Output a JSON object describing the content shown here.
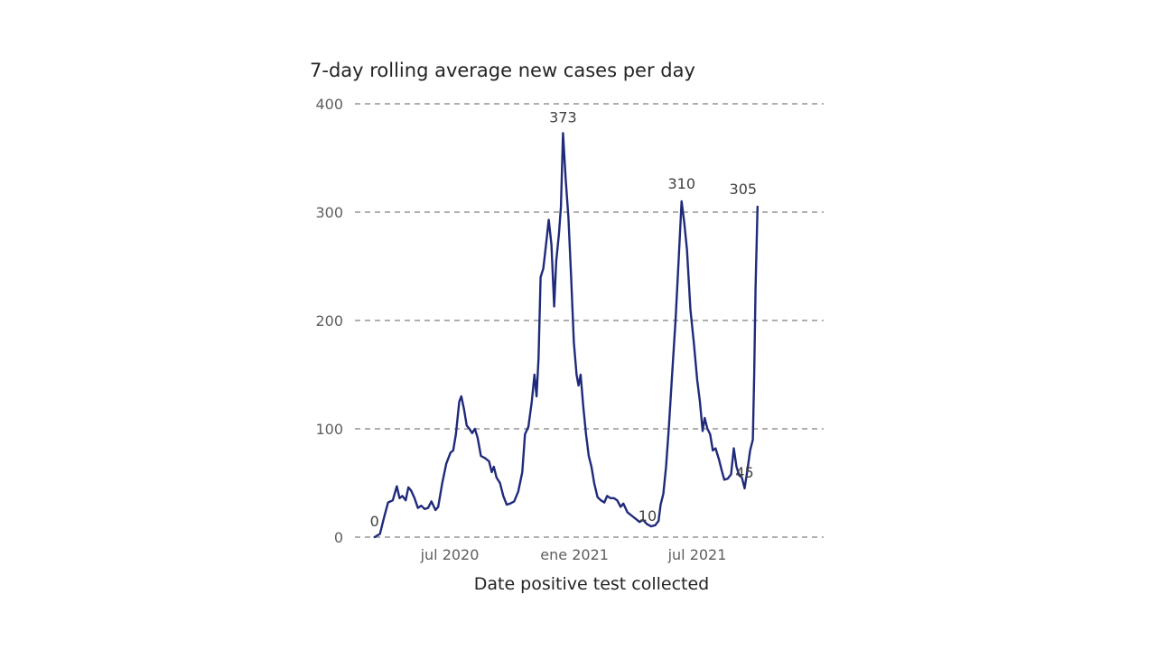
{
  "chart_data": {
    "type": "line",
    "title": "7-day rolling average new cases per day",
    "xlabel": "Date positive test collected",
    "ylabel": "",
    "ylim": [
      0,
      400
    ],
    "y_ticks": [
      0,
      100,
      200,
      300,
      400
    ],
    "y_tick_labels": [
      "0",
      "100",
      "200",
      "300",
      "400"
    ],
    "x_tick_labels": [
      {
        "label": "jul 2020",
        "date": "2020-07-01"
      },
      {
        "label": "ene 2021",
        "date": "2021-01-01"
      },
      {
        "label": "jul 2021",
        "date": "2021-07-01"
      }
    ],
    "xlim": [
      "2020-03-12",
      "2021-11-20"
    ],
    "grid": "horizontal-dashed",
    "line_color": "#1f2a7a",
    "highlight_color": "#9aa0c8",
    "series": [
      {
        "name": "7-day rolling average",
        "points": [
          [
            "2020-03-12",
            0
          ],
          [
            "2020-03-20",
            3
          ],
          [
            "2020-03-26",
            18
          ],
          [
            "2020-04-01",
            32
          ],
          [
            "2020-04-08",
            34
          ],
          [
            "2020-04-14",
            47
          ],
          [
            "2020-04-18",
            36
          ],
          [
            "2020-04-22",
            38
          ],
          [
            "2020-04-27",
            34
          ],
          [
            "2020-05-01",
            46
          ],
          [
            "2020-05-05",
            43
          ],
          [
            "2020-05-10",
            36
          ],
          [
            "2020-05-15",
            27
          ],
          [
            "2020-05-20",
            29
          ],
          [
            "2020-05-25",
            26
          ],
          [
            "2020-05-30",
            27
          ],
          [
            "2020-06-04",
            33
          ],
          [
            "2020-06-10",
            25
          ],
          [
            "2020-06-14",
            28
          ],
          [
            "2020-06-20",
            50
          ],
          [
            "2020-06-26",
            68
          ],
          [
            "2020-07-02",
            78
          ],
          [
            "2020-07-06",
            80
          ],
          [
            "2020-07-10",
            95
          ],
          [
            "2020-07-15",
            125
          ],
          [
            "2020-07-18",
            130
          ],
          [
            "2020-07-22",
            118
          ],
          [
            "2020-07-26",
            103
          ],
          [
            "2020-07-30",
            100
          ],
          [
            "2020-08-03",
            96
          ],
          [
            "2020-08-07",
            100
          ],
          [
            "2020-08-11",
            92
          ],
          [
            "2020-08-16",
            75
          ],
          [
            "2020-08-22",
            73
          ],
          [
            "2020-08-28",
            70
          ],
          [
            "2020-09-01",
            60
          ],
          [
            "2020-09-04",
            65
          ],
          [
            "2020-09-08",
            55
          ],
          [
            "2020-09-13",
            50
          ],
          [
            "2020-09-18",
            38
          ],
          [
            "2020-09-23",
            30
          ],
          [
            "2020-09-28",
            31
          ],
          [
            "2020-10-04",
            33
          ],
          [
            "2020-10-10",
            42
          ],
          [
            "2020-10-16",
            60
          ],
          [
            "2020-10-20",
            95
          ],
          [
            "2020-10-25",
            102
          ],
          [
            "2020-10-30",
            125
          ],
          [
            "2020-11-03",
            150
          ],
          [
            "2020-11-06",
            130
          ],
          [
            "2020-11-09",
            165
          ],
          [
            "2020-11-12",
            240
          ],
          [
            "2020-11-16",
            248
          ],
          [
            "2020-11-20",
            270
          ],
          [
            "2020-11-24",
            293
          ],
          [
            "2020-11-28",
            270
          ],
          [
            "2020-12-02",
            213
          ],
          [
            "2020-12-05",
            255
          ],
          [
            "2020-12-09",
            280
          ],
          [
            "2020-12-12",
            305
          ],
          [
            "2020-12-15",
            373
          ],
          [
            "2020-12-19",
            330
          ],
          [
            "2020-12-23",
            295
          ],
          [
            "2020-12-27",
            240
          ],
          [
            "2020-12-31",
            180
          ],
          [
            "2021-01-04",
            150
          ],
          [
            "2021-01-07",
            140
          ],
          [
            "2021-01-10",
            150
          ],
          [
            "2021-01-14",
            120
          ],
          [
            "2021-01-18",
            95
          ],
          [
            "2021-01-22",
            75
          ],
          [
            "2021-01-26",
            65
          ],
          [
            "2021-01-30",
            50
          ],
          [
            "2021-02-04",
            37
          ],
          [
            "2021-02-09",
            34
          ],
          [
            "2021-02-14",
            32
          ],
          [
            "2021-02-18",
            38
          ],
          [
            "2021-02-23",
            36
          ],
          [
            "2021-02-28",
            36
          ],
          [
            "2021-03-05",
            34
          ],
          [
            "2021-03-10",
            28
          ],
          [
            "2021-03-14",
            31
          ],
          [
            "2021-03-20",
            23
          ],
          [
            "2021-03-26",
            20
          ],
          [
            "2021-04-01",
            17
          ],
          [
            "2021-04-07",
            14
          ],
          [
            "2021-04-12",
            16
          ],
          [
            "2021-04-18",
            12
          ],
          [
            "2021-04-24",
            10
          ],
          [
            "2021-04-30",
            11
          ],
          [
            "2021-05-05",
            15
          ],
          [
            "2021-05-08",
            30
          ],
          [
            "2021-05-12",
            40
          ],
          [
            "2021-05-16",
            65
          ],
          [
            "2021-05-20",
            100
          ],
          [
            "2021-05-25",
            150
          ],
          [
            "2021-05-30",
            200
          ],
          [
            "2021-06-04",
            260
          ],
          [
            "2021-06-08",
            310
          ],
          [
            "2021-06-12",
            290
          ],
          [
            "2021-06-16",
            265
          ],
          [
            "2021-06-21",
            210
          ],
          [
            "2021-06-26",
            180
          ],
          [
            "2021-07-01",
            145
          ],
          [
            "2021-07-05",
            125
          ],
          [
            "2021-07-09",
            98
          ],
          [
            "2021-07-12",
            110
          ],
          [
            "2021-07-16",
            100
          ],
          [
            "2021-07-20",
            95
          ],
          [
            "2021-07-24",
            80
          ],
          [
            "2021-07-28",
            82
          ],
          [
            "2021-08-02",
            72
          ],
          [
            "2021-08-06",
            62
          ],
          [
            "2021-08-10",
            53
          ],
          [
            "2021-08-15",
            54
          ],
          [
            "2021-08-20",
            58
          ],
          [
            "2021-08-24",
            82
          ],
          [
            "2021-08-28",
            65
          ],
          [
            "2021-09-01",
            57
          ],
          [
            "2021-09-05",
            55
          ],
          [
            "2021-09-09",
            45
          ],
          [
            "2021-09-13",
            62
          ],
          [
            "2021-09-17",
            80
          ],
          [
            "2021-09-21",
            90
          ],
          [
            "2021-09-23",
            150
          ],
          [
            "2021-09-25",
            230
          ],
          [
            "2021-09-28",
            305
          ]
        ]
      }
    ],
    "annotations": [
      {
        "label": "0",
        "date": "2020-03-12",
        "value": 0
      },
      {
        "label": "373",
        "date": "2020-12-15",
        "value": 373
      },
      {
        "label": "10",
        "date": "2021-04-24",
        "value": 10
      },
      {
        "label": "310",
        "date": "2021-06-08",
        "value": 310
      },
      {
        "label": "45",
        "date": "2021-09-09",
        "value": 45
      },
      {
        "label": "305",
        "date": "2021-09-28",
        "value": 305
      }
    ]
  }
}
